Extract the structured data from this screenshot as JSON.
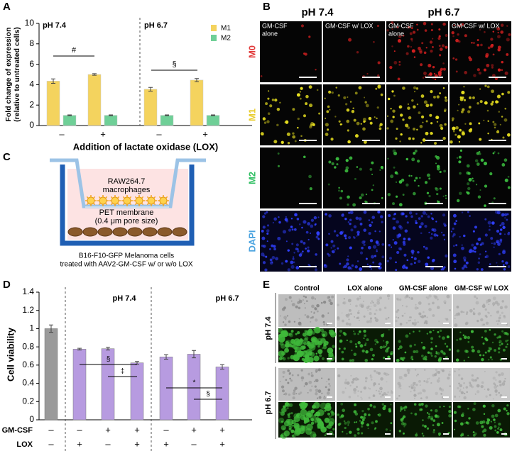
{
  "panel_labels": [
    "A",
    "B",
    "C",
    "D",
    "E"
  ],
  "chart_data": [
    {
      "type": "bar",
      "ylabel": [
        "Fold change of expression",
        "(relative to untreated cells)"
      ],
      "xlabel": "Addition of lactate oxidase (LOX)",
      "groups": [
        "pH 7.4",
        "pH 6.7"
      ],
      "categories": [
        "–",
        "+",
        "–",
        "+"
      ],
      "series": [
        {
          "name": "M1",
          "color": "#f4d35e",
          "values": [
            4.35,
            5.0,
            3.55,
            4.45
          ],
          "errors": [
            0.22,
            0.08,
            0.18,
            0.15
          ]
        },
        {
          "name": "M2",
          "color": "#6fcf97",
          "values": [
            1,
            1,
            1,
            1
          ],
          "errors": [
            0.04,
            0.04,
            0.04,
            0.04
          ]
        }
      ],
      "ylim": [
        0,
        10
      ],
      "yticks": [
        0,
        2,
        4,
        6,
        8,
        10
      ],
      "annotations": [
        "#",
        "§"
      ]
    },
    {
      "type": "bar",
      "ylabel": "Cell viability",
      "groups": [
        "pH 7.4",
        "pH 6.7"
      ],
      "values": [
        1.0,
        0.775,
        0.78,
        0.625,
        0.69,
        0.72,
        0.58
      ],
      "errors": [
        0.04,
        0.01,
        0.015,
        0.015,
        0.025,
        0.04,
        0.025
      ],
      "colors": [
        "#9a9a9a",
        "#b79be0",
        "#b79be0",
        "#b79be0",
        "#b79be0",
        "#b79be0",
        "#b79be0"
      ],
      "ylim": [
        0,
        1.4
      ],
      "yticks": [
        0,
        0.2,
        0.4,
        0.6,
        0.8,
        1,
        1.2,
        1.4
      ],
      "rows": [
        {
          "name": "GM-CSF",
          "values": [
            "–",
            "–",
            "+",
            "+",
            "–",
            "+",
            "+"
          ]
        },
        {
          "name": "LOX",
          "values": [
            "–",
            "+",
            "–",
            "+",
            "+",
            "–",
            "+"
          ]
        }
      ],
      "annotations": [
        "§",
        "‡",
        "*",
        "§"
      ]
    }
  ],
  "panel_b": {
    "groups": [
      "pH 7.4",
      "pH 6.7"
    ],
    "columns": [
      [
        "GM-CSF",
        "alone"
      ],
      [
        "GM-CSF w/ LOX"
      ],
      [
        "GM-CSF",
        "alone"
      ],
      [
        "GM-CSF w/ LOX"
      ]
    ],
    "rows": [
      "M0",
      "M1",
      "M2",
      "DAPI"
    ]
  },
  "panel_c": {
    "cells": [
      "RAW264.7",
      "macrophages"
    ],
    "membrane": [
      "PET membrane",
      "(0.4 μm pore size)"
    ],
    "caption": [
      "B16-F10-GFP Melanoma cells",
      "treated with AAV2-GM-CSF w/ or w/o LOX"
    ]
  },
  "panel_e": {
    "columns": [
      "Control",
      "LOX alone",
      "GM-CSF alone",
      "GM-CSF w/ LOX"
    ],
    "rows": [
      "pH 7.4",
      "pH 6.7"
    ]
  }
}
